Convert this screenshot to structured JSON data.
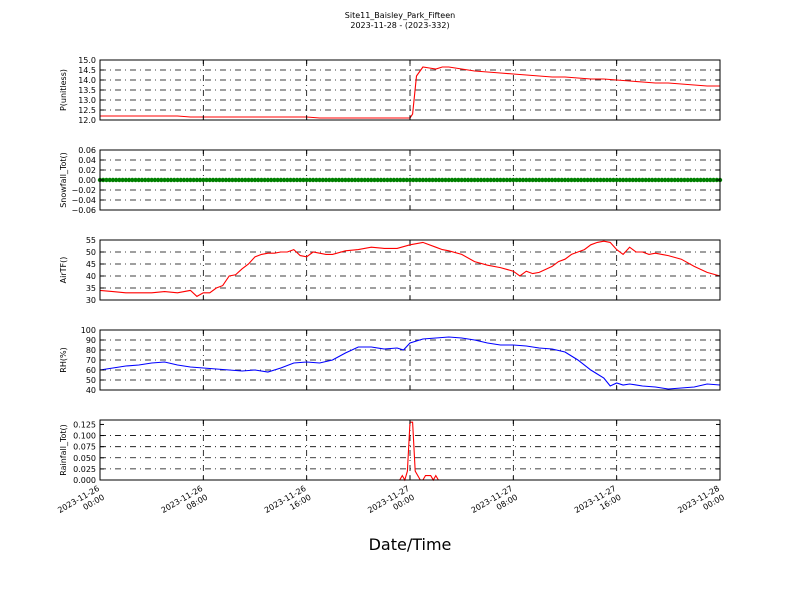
{
  "figure": {
    "title_line1": "Site11_Baisley_Park_Fifteen",
    "title_line2": "2023-11-28 - (2023-332)",
    "xlabel": "Date/Time",
    "x_ticks": [
      {
        "t": 0,
        "label": [
          "2023-11-26",
          "00:00"
        ]
      },
      {
        "t": 8,
        "label": [
          "2023-11-26",
          "08:00"
        ]
      },
      {
        "t": 16,
        "label": [
          "2023-11-26",
          "16:00"
        ]
      },
      {
        "t": 24,
        "label": [
          "2023-11-27",
          "00:00"
        ]
      },
      {
        "t": 32,
        "label": [
          "2023-11-27",
          "08:00"
        ]
      },
      {
        "t": 40,
        "label": [
          "2023-11-27",
          "16:00"
        ]
      },
      {
        "t": 48,
        "label": [
          "2023-11-28",
          "00:00"
        ]
      }
    ],
    "x_range_hours": [
      0,
      48
    ]
  },
  "chart_data": [
    {
      "type": "line",
      "ylabel": "P(unitless)",
      "ylim": [
        12.0,
        15.0
      ],
      "yticks": [
        "12.0",
        "12.5",
        "13.0",
        "13.5",
        "14.0",
        "14.5",
        "15.0"
      ],
      "grid": true,
      "series": [
        {
          "color": "#ff0000",
          "x": [
            0,
            1,
            2,
            3,
            4,
            5,
            6,
            7,
            8,
            9,
            10,
            11,
            12,
            13,
            14,
            15,
            16,
            17,
            18,
            19,
            20,
            21,
            22,
            23,
            23.5,
            24,
            24.2,
            24.5,
            25,
            25.5,
            26,
            26.5,
            27,
            28,
            29,
            30,
            31,
            32,
            33,
            34,
            35,
            36,
            37,
            38,
            39,
            40,
            41,
            42,
            43,
            44,
            45,
            46,
            47,
            48
          ],
          "y": [
            12.2,
            12.2,
            12.2,
            12.2,
            12.2,
            12.2,
            12.2,
            12.15,
            12.15,
            12.15,
            12.15,
            12.15,
            12.15,
            12.15,
            12.15,
            12.15,
            12.15,
            12.1,
            12.1,
            12.1,
            12.1,
            12.1,
            12.1,
            12.1,
            12.1,
            12.1,
            12.3,
            14.2,
            14.65,
            14.6,
            14.55,
            14.65,
            14.65,
            14.55,
            14.45,
            14.4,
            14.35,
            14.3,
            14.25,
            14.2,
            14.15,
            14.15,
            14.1,
            14.05,
            14.05,
            14.0,
            13.95,
            13.9,
            13.85,
            13.85,
            13.8,
            13.75,
            13.7,
            13.7
          ]
        }
      ]
    },
    {
      "type": "scatter",
      "ylabel": "Snowfall_Tot()",
      "ylim": [
        -0.06,
        0.06
      ],
      "yticks": [
        "−0.06",
        "−0.04",
        "−0.02",
        "0.00",
        "0.02",
        "0.04",
        "0.06"
      ],
      "grid": true,
      "series": [
        {
          "color": "#008000",
          "constant": 0.0,
          "x_step": 0.25
        }
      ]
    },
    {
      "type": "line",
      "ylabel": "AirTF()",
      "ylim": [
        30,
        55
      ],
      "yticks": [
        "30",
        "35",
        "40",
        "45",
        "50",
        "55"
      ],
      "grid": true,
      "series": [
        {
          "color": "#ff0000",
          "x": [
            0,
            1,
            2,
            3,
            4,
            5,
            6,
            7,
            7.5,
            8,
            8.5,
            9,
            9.5,
            10,
            10.5,
            11,
            11.5,
            12,
            12.5,
            13,
            13.5,
            14,
            14.5,
            15,
            15.5,
            16,
            16.5,
            17,
            17.5,
            18,
            19,
            20,
            21,
            22,
            23,
            24,
            25,
            26,
            26.5,
            27,
            28,
            29,
            30,
            31,
            32,
            32.5,
            33,
            33.5,
            34,
            35,
            35.5,
            36,
            36.5,
            37,
            37.5,
            38,
            38.5,
            39,
            39.5,
            40,
            40.5,
            41,
            41.5,
            42,
            42.5,
            43,
            43.5,
            44,
            45,
            46,
            47,
            48
          ],
          "y": [
            34,
            33.5,
            33,
            33,
            33,
            33.5,
            33,
            34,
            31.5,
            33,
            33,
            35,
            36,
            40,
            40.5,
            43,
            45,
            48,
            49,
            49.5,
            49.5,
            50,
            50,
            51,
            48.5,
            48,
            50,
            49.5,
            49,
            49,
            50.5,
            51,
            52,
            51.5,
            51.5,
            53,
            54,
            52,
            51,
            50.5,
            49,
            46,
            44.5,
            43.5,
            42,
            40,
            42,
            41,
            41.5,
            44,
            46,
            47,
            49,
            50,
            51,
            53,
            54,
            54.5,
            54,
            51,
            49,
            52,
            50,
            50,
            49,
            49.5,
            49,
            48.5,
            47,
            44,
            41.5,
            40
          ]
        }
      ]
    },
    {
      "type": "line",
      "ylabel": "RH(%)",
      "ylim": [
        40,
        100
      ],
      "yticks": [
        "40",
        "50",
        "60",
        "70",
        "80",
        "90",
        "100"
      ],
      "grid": true,
      "series": [
        {
          "color": "#0000ff",
          "x": [
            0,
            1,
            2,
            3,
            4,
            5,
            6,
            7,
            8,
            9,
            10,
            11,
            12,
            13,
            14,
            15,
            16,
            17,
            18,
            19,
            20,
            21,
            22,
            23,
            23.5,
            24,
            25,
            26,
            27,
            28,
            29,
            30,
            31,
            32,
            33,
            34,
            35,
            36,
            37,
            38,
            39,
            39.5,
            40,
            40.5,
            41,
            42,
            43,
            44,
            45,
            46,
            47,
            48
          ],
          "y": [
            60,
            62,
            64,
            65,
            67,
            68,
            65,
            63,
            62,
            61,
            60,
            59,
            60,
            58,
            62,
            67,
            68,
            67,
            70,
            77,
            83,
            83,
            81,
            82,
            80,
            87,
            91,
            92,
            93,
            92,
            90,
            87,
            85,
            85,
            84,
            82,
            81,
            78,
            70,
            60,
            52,
            44,
            47,
            45,
            46,
            44,
            43,
            41,
            42,
            43,
            46,
            45
          ]
        }
      ]
    },
    {
      "type": "line",
      "ylabel": "Rainfall_Tot()",
      "ylim": [
        0.0,
        0.135
      ],
      "yticks": [
        "0.000",
        "0.025",
        "0.050",
        "0.075",
        "0.100",
        "0.125"
      ],
      "grid": true,
      "series": [
        {
          "color": "#ff0000",
          "x": [
            0,
            23.2,
            23.4,
            23.6,
            23.8,
            24,
            24.2,
            24.4,
            24.6,
            24.8,
            25,
            25.2,
            25.4,
            25.6,
            25.8,
            26,
            26.2,
            26.4,
            26.6,
            26.8,
            27,
            27.2,
            27.4,
            27.6,
            48
          ],
          "y": [
            0,
            0,
            0.01,
            0,
            0.02,
            0.13,
            0.13,
            0.02,
            0.01,
            0,
            0,
            0.01,
            0.01,
            0.01,
            0,
            0.01,
            0,
            0,
            0,
            0,
            0,
            0,
            0,
            0,
            0
          ]
        }
      ]
    }
  ]
}
